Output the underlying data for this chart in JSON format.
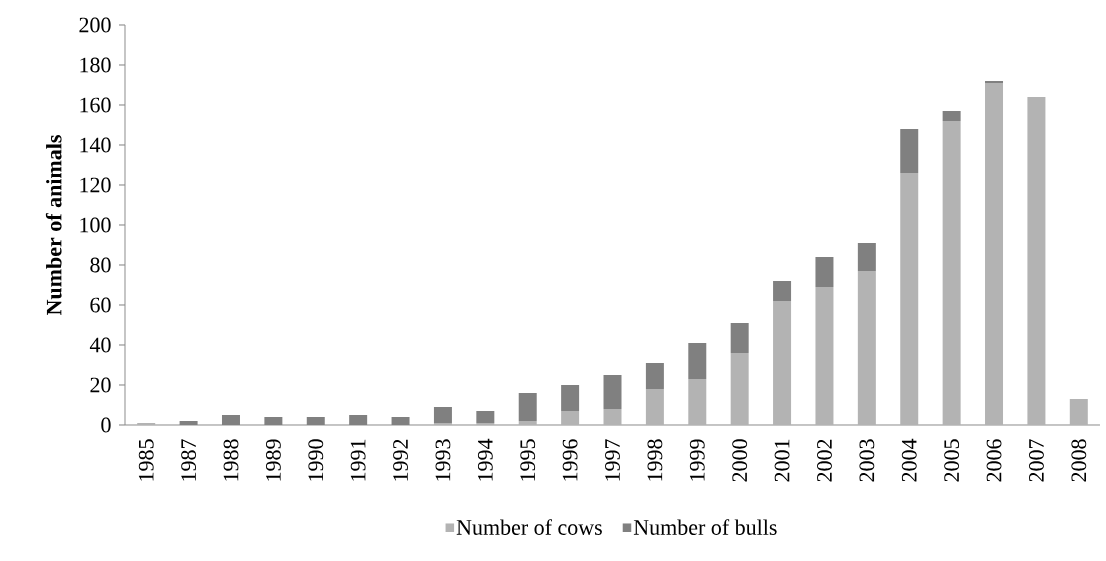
{
  "chart_data": {
    "type": "bar",
    "stacked": true,
    "ylabel": "Number of animals",
    "categories": [
      "1985",
      "1987",
      "1988",
      "1989",
      "1990",
      "1991",
      "1992",
      "1993",
      "1994",
      "1995",
      "1996",
      "1997",
      "1998",
      "1999",
      "2000",
      "2001",
      "2002",
      "2003",
      "2004",
      "2005",
      "2006",
      "2007",
      "2008"
    ],
    "series": [
      {
        "name": "Number of cows",
        "color": "#b3b3b3",
        "values": [
          1,
          0,
          0,
          0,
          0,
          0,
          0,
          1,
          1,
          2,
          7,
          8,
          18,
          23,
          36,
          62,
          69,
          77,
          126,
          152,
          171,
          164,
          13
        ]
      },
      {
        "name": "Number of bulls",
        "color": "#808080",
        "values": [
          0,
          2,
          5,
          4,
          4,
          5,
          4,
          8,
          6,
          14,
          13,
          17,
          13,
          18,
          15,
          10,
          15,
          14,
          22,
          5,
          1,
          0,
          0
        ]
      }
    ],
    "ylim": [
      0,
      200
    ],
    "yticks": [
      0,
      20,
      40,
      60,
      80,
      100,
      120,
      140,
      160,
      180,
      200
    ],
    "legend": "bottom",
    "grid": false
  }
}
